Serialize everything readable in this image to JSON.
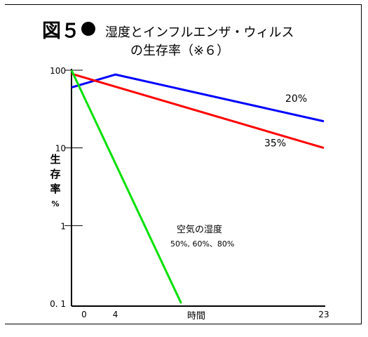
{
  "title": {
    "figure": "図５",
    "line1": "湿度とインフルエンザ・ウィルス",
    "line2": "の生存率（※６）"
  },
  "chart_data": {
    "type": "line",
    "ylabel": "生存率",
    "yunit": "%",
    "xlabel": "時間",
    "yscale": "log",
    "ylim": [
      0.1,
      100
    ],
    "xlim": [
      0,
      23
    ],
    "yticks": [
      {
        "value": 100,
        "label": "100"
      },
      {
        "value": 10,
        "label": "10"
      },
      {
        "value": 1,
        "label": "1"
      },
      {
        "value": 0.1,
        "label": "0. 1"
      }
    ],
    "xticks": [
      {
        "value": 0,
        "label": "0"
      },
      {
        "value": 4,
        "label": "4"
      },
      {
        "value": 23,
        "label": "23"
      }
    ],
    "series": [
      {
        "name": "20%",
        "color": "#0000ff",
        "points": [
          [
            0,
            60
          ],
          [
            4,
            88
          ],
          [
            23,
            22
          ]
        ]
      },
      {
        "name": "35%",
        "color": "#ff0000",
        "points": [
          [
            0,
            90
          ],
          [
            23,
            10
          ]
        ]
      },
      {
        "name": "",
        "color": "#00e000",
        "points": [
          [
            0,
            100
          ],
          [
            10,
            0.1
          ]
        ]
      }
    ],
    "annotation": {
      "line1": "空気の湿度",
      "line2": "50%, 60%、80%"
    },
    "grid": false,
    "legend": "none"
  }
}
